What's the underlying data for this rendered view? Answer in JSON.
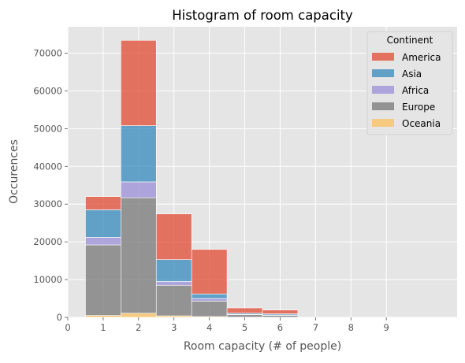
{
  "chart_data": {
    "type": "bar",
    "stacked": true,
    "title": "Histogram of room capacity",
    "xlabel": "Room capacity (# of people)",
    "ylabel": "Occurences",
    "xlim": [
      0,
      11
    ],
    "ylim": [
      0,
      77000
    ],
    "x_ticks": [
      "0",
      "1",
      "2",
      "3",
      "4",
      "5",
      "6",
      "7",
      "8",
      "9"
    ],
    "y_ticks": [
      "0",
      "10000",
      "20000",
      "30000",
      "40000",
      "50000",
      "60000",
      "70000"
    ],
    "grid": true,
    "legend": {
      "title": "Continent",
      "placement": "top-right"
    },
    "bins": [
      {
        "range": [
          0.5,
          1.5
        ]
      },
      {
        "range": [
          1.5,
          2.5
        ]
      },
      {
        "range": [
          2.5,
          3.5
        ]
      },
      {
        "range": [
          3.5,
          4.5
        ]
      },
      {
        "range": [
          4.5,
          5.5
        ]
      },
      {
        "range": [
          5.5,
          6.5
        ]
      }
    ],
    "series": [
      {
        "name": "Oceania",
        "color": "#fbc15e",
        "values": [
          500,
          1100,
          400,
          200,
          50,
          30
        ]
      },
      {
        "name": "Europe",
        "color": "#777777",
        "values": [
          18700,
          30600,
          8100,
          4100,
          650,
          500
        ]
      },
      {
        "name": "Africa",
        "color": "#988ed5",
        "values": [
          2000,
          4200,
          1000,
          700,
          100,
          100
        ]
      },
      {
        "name": "Asia",
        "color": "#348abd",
        "values": [
          7300,
          14900,
          5800,
          1200,
          300,
          300
        ]
      },
      {
        "name": "America",
        "color": "#e24a33",
        "values": [
          3500,
          22600,
          12100,
          11800,
          1400,
          1000
        ]
      }
    ],
    "legend_order": [
      "America",
      "Asia",
      "Africa",
      "Europe",
      "Oceania"
    ]
  }
}
